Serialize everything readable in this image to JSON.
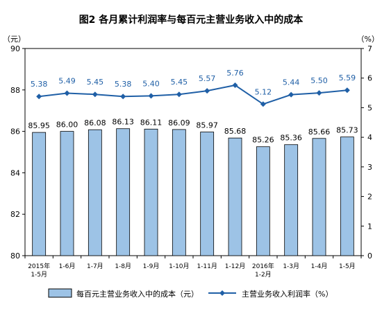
{
  "chart_data": {
    "type": "bar+line",
    "title": "图2  各月累计利润率与每百元主营业务收入中的成本",
    "categories": [
      [
        "2015年",
        "1-5月"
      ],
      [
        "1-6月"
      ],
      [
        "1-7月"
      ],
      [
        "1-8月"
      ],
      [
        "1-9月"
      ],
      [
        "1-10月"
      ],
      [
        "1-11月"
      ],
      [
        "1-12月"
      ],
      [
        "2016年",
        "1-2月"
      ],
      [
        "1-3月"
      ],
      [
        "1-4月"
      ],
      [
        "1-5月"
      ]
    ],
    "series": [
      {
        "name": "每百元主营业务收入中的成本（元）",
        "type": "bar",
        "axis": "left",
        "color": "#9dc3e6",
        "values": [
          85.95,
          86.0,
          86.08,
          86.13,
          86.11,
          86.09,
          85.97,
          85.68,
          85.26,
          85.36,
          85.66,
          85.73
        ],
        "labels": [
          "85.95",
          "86.00",
          "86.08",
          "86.13",
          "86.11",
          "86.09",
          "85.97",
          "85.68",
          "85.26",
          "85.36",
          "85.66",
          "85.73"
        ]
      },
      {
        "name": "主营业务收入利润率（%）",
        "type": "line",
        "axis": "right",
        "color": "#1f5fa6",
        "values": [
          5.38,
          5.49,
          5.45,
          5.38,
          5.4,
          5.45,
          5.57,
          5.76,
          5.12,
          5.44,
          5.5,
          5.59
        ],
        "labels": [
          "5.38",
          "5.49",
          "5.45",
          "5.38",
          "5.40",
          "5.45",
          "5.57",
          "5.76",
          "5.12",
          "5.44",
          "5.50",
          "5.59"
        ]
      }
    ],
    "y_left": {
      "unit": "（元）",
      "min": 80,
      "max": 90,
      "ticks": [
        "80",
        "82",
        "84",
        "86",
        "88",
        "90"
      ]
    },
    "y_right": {
      "unit": "（%）",
      "min": 0,
      "max": 7,
      "ticks": [
        "0",
        "1",
        "2",
        "3",
        "4",
        "5",
        "6",
        "7"
      ]
    },
    "legend_position": "bottom",
    "grid": false
  }
}
